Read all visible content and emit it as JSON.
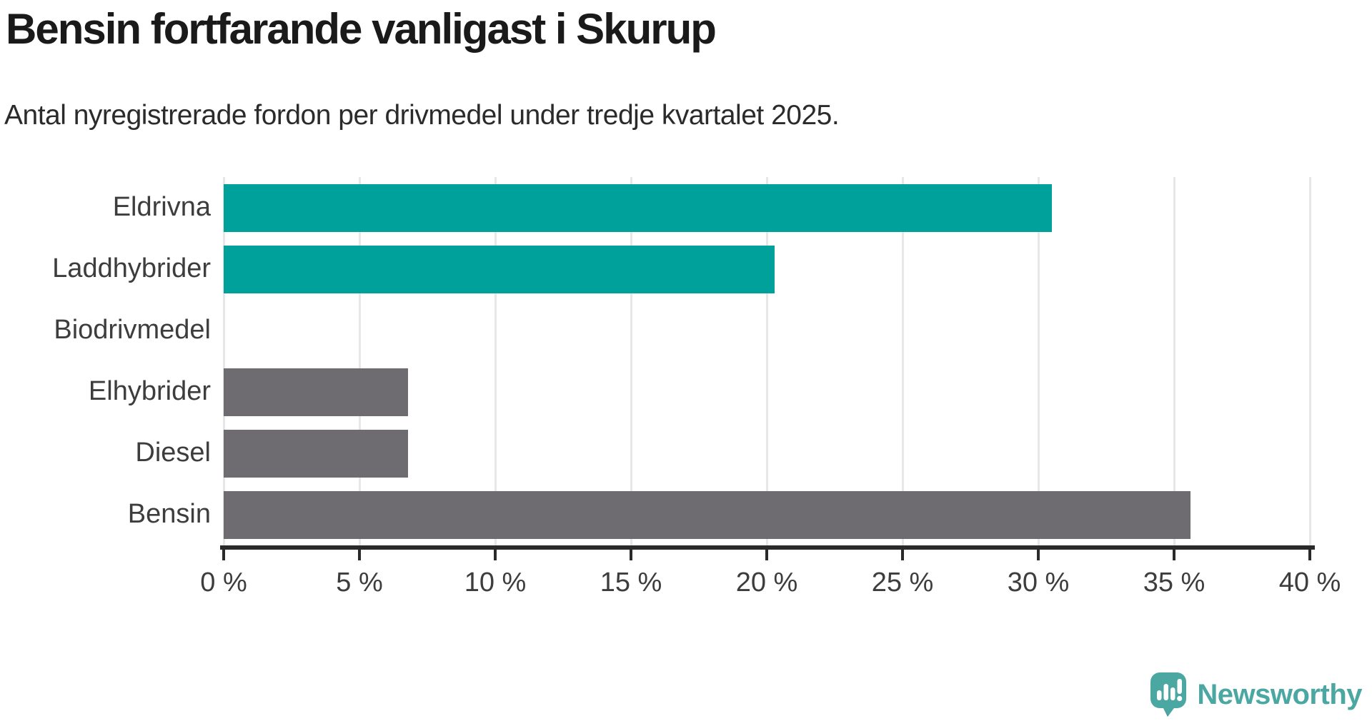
{
  "chart_data": {
    "type": "bar",
    "orientation": "horizontal",
    "title": "Bensin fortfarande vanligast i Skurup",
    "subtitle": "Antal nyregistrerade fordon per drivmedel under tredje kvartalet 2025.",
    "categories": [
      "Eldrivna",
      "Laddhybrider",
      "Biodrivmedel",
      "Elhybrider",
      "Diesel",
      "Bensin"
    ],
    "values": [
      30.5,
      20.3,
      0,
      6.8,
      6.8,
      35.6
    ],
    "unit": "%",
    "xlim": [
      0,
      40
    ],
    "x_ticks": [
      0,
      5,
      10,
      15,
      20,
      25,
      30,
      35,
      40
    ],
    "x_tick_labels": [
      "0 %",
      "5 %",
      "10 %",
      "15 %",
      "20 %",
      "25 %",
      "30 %",
      "35 %",
      "40 %"
    ],
    "bar_colors": [
      "#00a09b",
      "#00a09b",
      "#00a09b",
      "#6e6c71",
      "#6e6c71",
      "#6e6c71"
    ],
    "grid": true,
    "legend": "none"
  },
  "colors": {
    "teal_bar": "#00a09b",
    "gray_bar": "#6e6c71",
    "gridline": "#e7e7e7",
    "axis": "#2a2a2a",
    "text": "#3d3d3d",
    "logo_teal": "#4ba7a2",
    "logo_tail_shadow": "#3e8e8b"
  },
  "branding": {
    "name": "Newsworthy",
    "logo_icon": "speech-bubble-bar-chart-icon"
  }
}
